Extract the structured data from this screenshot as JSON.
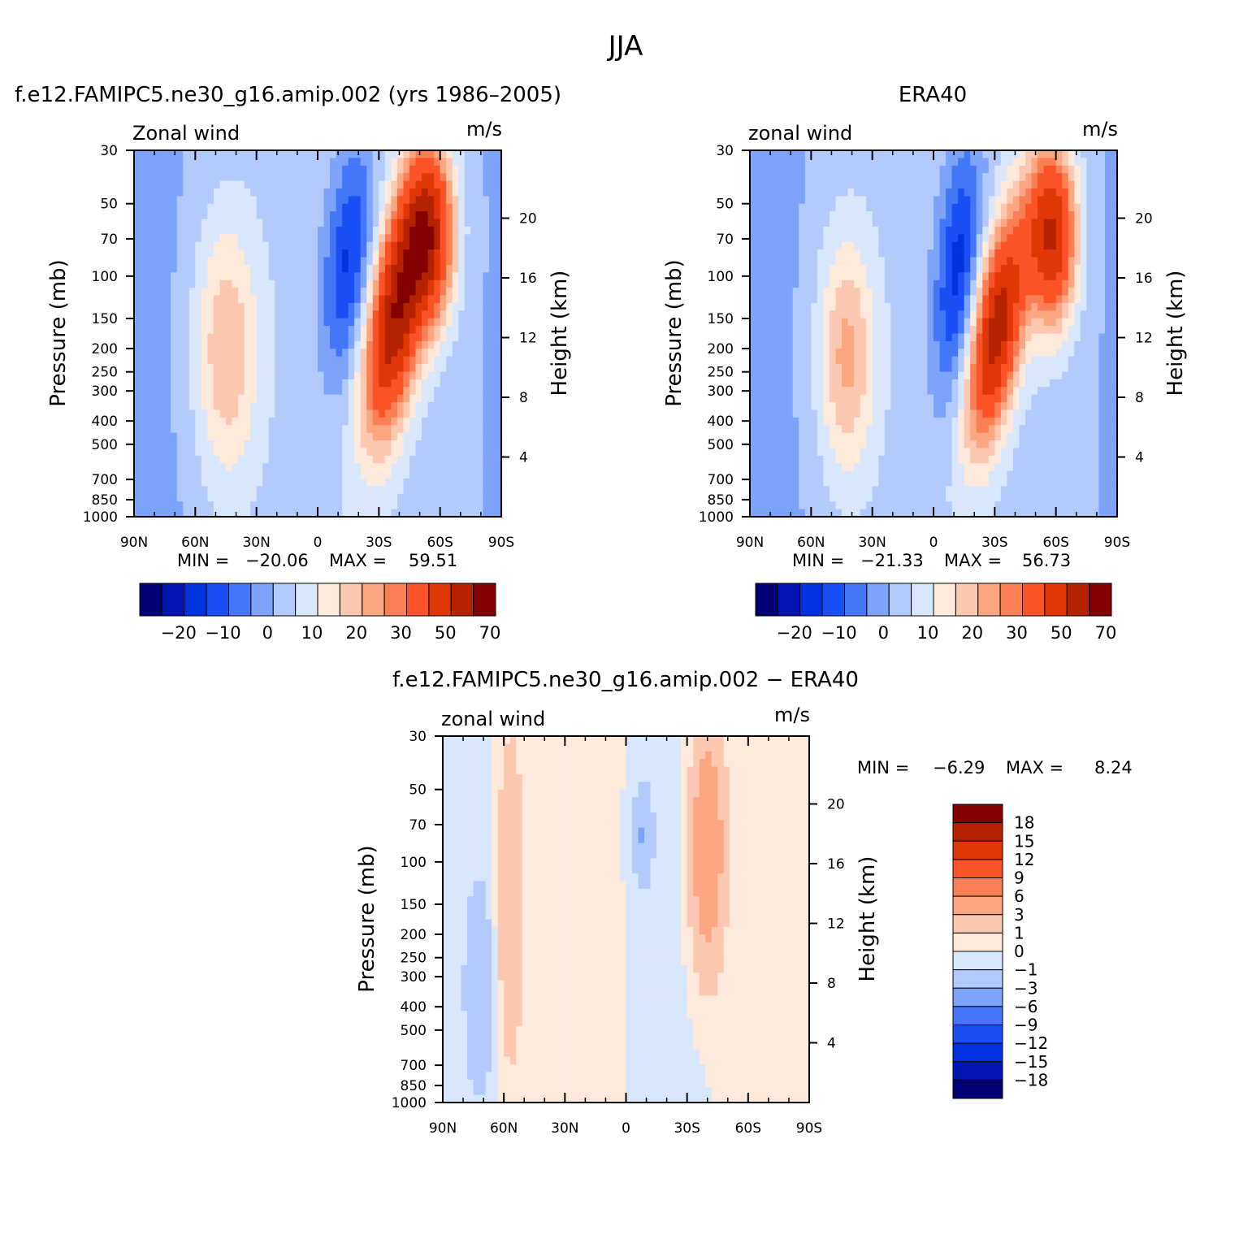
{
  "page_title": "JJA",
  "colors": {
    "model_obs_palette": [
      "#000074",
      "#0016b0",
      "#0033e0",
      "#1a4ff5",
      "#4477f7",
      "#7ea3fb",
      "#b3cbfc",
      "#d9e7fc",
      "#ffe9db",
      "#fdc8b1",
      "#fca781",
      "#fb7f54",
      "#fb5227",
      "#e13706",
      "#b52200",
      "#830000"
    ],
    "diff_palette": [
      "#000074",
      "#0016b0",
      "#0033e0",
      "#1a4ff5",
      "#4477f7",
      "#7ea3fb",
      "#b3cbfc",
      "#d9e7fc",
      "#ffe9db",
      "#fdc8b1",
      "#fca781",
      "#fb7f54",
      "#fb5227",
      "#e13706",
      "#b52200",
      "#830000"
    ]
  },
  "chart_data": [
    {
      "type": "heatmap",
      "title": "f.e12.FAMIPC5.ne30_g16.amip.002 (yrs 1986–2005)",
      "subtitle_left": "Zonal wind",
      "units": "m/s",
      "ylabel": "Pressure (mb)",
      "ylabel_right": "Height (km)",
      "x_ticks": [
        "90N",
        "60N",
        "30N",
        "0",
        "30S",
        "60S",
        "90S"
      ],
      "xlim": [
        90,
        -90
      ],
      "y_ticks": [
        30,
        50,
        70,
        100,
        150,
        200,
        250,
        300,
        400,
        500,
        700,
        850,
        1000
      ],
      "ylim": [
        1000,
        30
      ],
      "yscale": "log",
      "right_ticks": [
        4,
        8,
        12,
        16,
        20
      ],
      "min_label": "MIN =",
      "min_value": "−20.06",
      "max_label": "MAX =",
      "max_value": "59.51",
      "colorbar_labels": [
        "−20",
        "−10",
        "0",
        "10",
        "20",
        "30",
        "50",
        "70"
      ],
      "features": [
        {
          "name": "westerly-jet",
          "value": 55,
          "lat": -36,
          "p": 200,
          "lat_half": 13,
          "p_low": 50,
          "p_high": 420,
          "tilt": 0.55
        },
        {
          "name": "westerly-upper",
          "value": 45,
          "lat": -55,
          "p": 40,
          "lat_half": 12,
          "p_low": 30,
          "p_high": 150,
          "tilt": 0
        },
        {
          "name": "nh-jet",
          "value": 18,
          "lat": 45,
          "p": 200,
          "lat_half": 16,
          "p_low": 60,
          "p_high": 700,
          "tilt": 0
        },
        {
          "name": "easterly",
          "value": -20,
          "lat": -18,
          "p": 40,
          "lat_half": 12,
          "p_low": 30,
          "p_high": 250,
          "tilt": 0.3
        }
      ]
    },
    {
      "type": "heatmap",
      "title": "ERA40",
      "subtitle_left": "zonal wind",
      "units": "m/s",
      "ylabel": "Pressure (mb)",
      "ylabel_right": "Height (km)",
      "x_ticks": [
        "90N",
        "60N",
        "30N",
        "0",
        "30S",
        "60S",
        "90S"
      ],
      "xlim": [
        90,
        -90
      ],
      "y_ticks": [
        30,
        50,
        70,
        100,
        150,
        200,
        250,
        300,
        400,
        500,
        700,
        850,
        1000
      ],
      "ylim": [
        1000,
        30
      ],
      "yscale": "log",
      "right_ticks": [
        4,
        8,
        12,
        16,
        20
      ],
      "min_label": "MIN =",
      "min_value": "−21.33",
      "max_label": "MAX =",
      "max_value": "56.73",
      "colorbar_labels": [
        "−20",
        "−10",
        "0",
        "10",
        "20",
        "30",
        "50",
        "70"
      ],
      "features": [
        {
          "name": "westerly-jet",
          "value": 52,
          "lat": -30,
          "p": 200,
          "lat_half": 12,
          "p_low": 60,
          "p_high": 450,
          "tilt": 0.6
        },
        {
          "name": "westerly-upper",
          "value": 48,
          "lat": -58,
          "p": 40,
          "lat_half": 12,
          "p_low": 30,
          "p_high": 150,
          "tilt": 0
        },
        {
          "name": "nh-jet",
          "value": 20,
          "lat": 43,
          "p": 200,
          "lat_half": 14,
          "p_low": 70,
          "p_high": 650,
          "tilt": 0
        },
        {
          "name": "easterly",
          "value": -21,
          "lat": -15,
          "p": 40,
          "lat_half": 11,
          "p_low": 30,
          "p_high": 300,
          "tilt": 0.3
        }
      ]
    },
    {
      "type": "heatmap",
      "title": "f.e12.FAMIPC5.ne30_g16.amip.002 − ERA40",
      "subtitle_left": "zonal wind",
      "units": "m/s",
      "ylabel": "Pressure (mb)",
      "ylabel_right": "Height (km)",
      "x_ticks": [
        "90N",
        "60N",
        "30N",
        "0",
        "30S",
        "60S",
        "90S"
      ],
      "xlim": [
        90,
        -90
      ],
      "y_ticks": [
        30,
        50,
        70,
        100,
        150,
        200,
        250,
        300,
        400,
        500,
        700,
        850,
        1000
      ],
      "ylim": [
        1000,
        30
      ],
      "yscale": "log",
      "right_ticks": [
        4,
        8,
        12,
        16,
        20
      ],
      "min_label": "MIN =",
      "min_value": "−6.29",
      "max_label": "MAX =",
      "max_value": "8.24",
      "colorbar_labels": [
        "18",
        "15",
        "12",
        "9",
        "6",
        "3",
        "1",
        "0",
        "−1",
        "−3",
        "−6",
        "−9",
        "−12",
        "−15",
        "−18"
      ],
      "features": [
        {
          "name": "sh-positive",
          "value": 6,
          "lat": -40,
          "p": 80,
          "lat_half": 8,
          "p_low": 30,
          "p_high": 250,
          "tilt": 0
        },
        {
          "name": "nh-positive",
          "value": 3,
          "lat": 57,
          "p": 150,
          "lat_half": 7,
          "p_low": 30,
          "p_high": 700,
          "tilt": 0
        },
        {
          "name": "eq-negative",
          "value": -3,
          "lat": -8,
          "p": 75,
          "lat_half": 5,
          "p_low": 50,
          "p_high": 120,
          "tilt": 0
        },
        {
          "name": "nh-negative",
          "value": -2,
          "lat": 72,
          "p": 300,
          "lat_half": 8,
          "p_low": 120,
          "p_high": 900,
          "tilt": 0
        }
      ]
    }
  ]
}
